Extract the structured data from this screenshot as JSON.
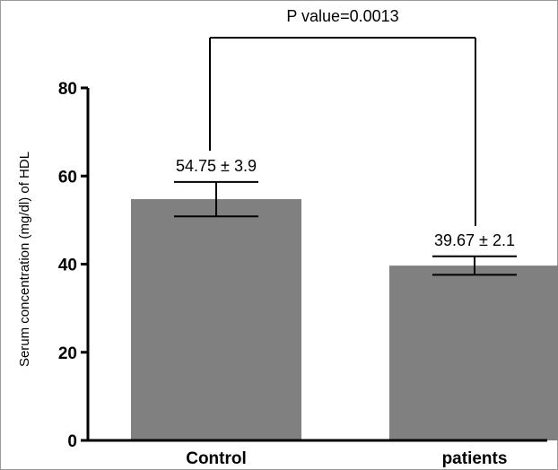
{
  "chart_data": {
    "type": "bar",
    "categories": [
      "Control",
      "patients"
    ],
    "values": [
      54.75,
      39.67
    ],
    "errors": [
      3.9,
      2.1
    ],
    "data_labels": [
      "54.75 ± 3.9",
      "39.67 ± 2.1"
    ],
    "ylabel": "Serum concentration (mg/dl) of HDL",
    "xlabel": "",
    "ylim": [
      0,
      80
    ],
    "yticks": [
      0,
      20,
      40,
      60,
      80
    ],
    "ytick_labels": [
      "0",
      "20",
      "40",
      "60",
      "80"
    ],
    "bar_color": "#808080",
    "grid": false,
    "annotation": "P value=0.0013"
  }
}
